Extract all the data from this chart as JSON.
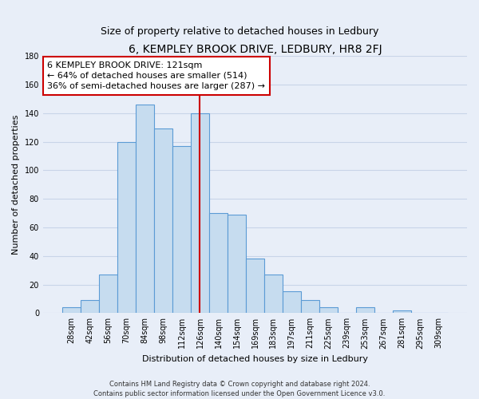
{
  "title": "6, KEMPLEY BROOK DRIVE, LEDBURY, HR8 2FJ",
  "subtitle": "Size of property relative to detached houses in Ledbury",
  "xlabel": "Distribution of detached houses by size in Ledbury",
  "ylabel": "Number of detached properties",
  "bar_labels": [
    "28sqm",
    "42sqm",
    "56sqm",
    "70sqm",
    "84sqm",
    "98sqm",
    "112sqm",
    "126sqm",
    "140sqm",
    "154sqm",
    "169sqm",
    "183sqm",
    "197sqm",
    "211sqm",
    "225sqm",
    "239sqm",
    "253sqm",
    "267sqm",
    "281sqm",
    "295sqm",
    "309sqm"
  ],
  "bar_values": [
    4,
    9,
    27,
    120,
    146,
    129,
    117,
    140,
    70,
    69,
    38,
    27,
    15,
    9,
    4,
    0,
    4,
    0,
    2,
    0,
    0
  ],
  "bar_color": "#c6dcef",
  "bar_edge_color": "#5b9bd5",
  "vline_color": "#cc0000",
  "annotation_text": "6 KEMPLEY BROOK DRIVE: 121sqm\n← 64% of detached houses are smaller (514)\n36% of semi-detached houses are larger (287) →",
  "annotation_box_facecolor": "#ffffff",
  "annotation_box_edgecolor": "#cc0000",
  "ylim": [
    0,
    180
  ],
  "yticks": [
    0,
    20,
    40,
    60,
    80,
    100,
    120,
    140,
    160,
    180
  ],
  "footer": "Contains HM Land Registry data © Crown copyright and database right 2024.\nContains public sector information licensed under the Open Government Licence v3.0.",
  "bg_color": "#e8eef8",
  "grid_color": "#c8d4e8",
  "title_fontsize": 10,
  "subtitle_fontsize": 9,
  "xlabel_fontsize": 8,
  "ylabel_fontsize": 8,
  "tick_fontsize": 7,
  "annot_fontsize": 8,
  "footer_fontsize": 6,
  "vline_x_index": 7
}
